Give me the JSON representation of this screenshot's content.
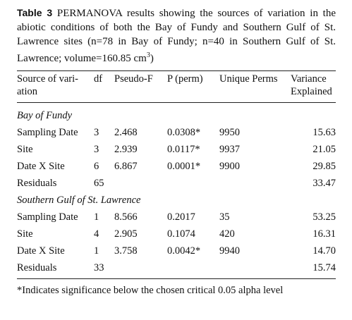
{
  "caption": {
    "label": "Table 3",
    "text": "PERMANOVA results showing the sources of variation in the abiotic conditions of both the Bay of Fundy and Southern Gulf of St. Lawrence sites (n=78 in Bay of Fundy; n=40 in Southern Gulf of St. Lawrence; volume=160.85 cm",
    "superscript": "3",
    "end": ")"
  },
  "table": {
    "header": {
      "source": [
        "Source of vari-",
        "ation"
      ],
      "df": [
        "df"
      ],
      "pseudo_f": [
        "Pseudo-F"
      ],
      "p": [
        "P (perm)"
      ],
      "perms": [
        "Unique Perms"
      ],
      "variance": [
        "Variance",
        "Explained"
      ]
    },
    "sections": [
      {
        "title": "Bay of Fundy",
        "rows": [
          {
            "source": "Sampling Date",
            "df": "3",
            "pseudo_f": "2.468",
            "p": "0.0308*",
            "perms": "9950",
            "variance": "15.63"
          },
          {
            "source": "Site",
            "df": "3",
            "pseudo_f": "2.939",
            "p": "0.0117*",
            "perms": "9937",
            "variance": "21.05"
          },
          {
            "source": "Date X Site",
            "df": "6",
            "pseudo_f": "6.867",
            "p": "0.0001*",
            "perms": "9900",
            "variance": "29.85"
          },
          {
            "source": "Residuals",
            "df": "65",
            "variance": "33.47"
          }
        ]
      },
      {
        "title": "Southern Gulf of St. Lawrence",
        "rows": [
          {
            "source": "Sampling Date",
            "df": "1",
            "pseudo_f": "8.566",
            "p": "0.2017",
            "perms": "35",
            "variance": "53.25"
          },
          {
            "source": "Site",
            "df": "4",
            "pseudo_f": "2.905",
            "p": "0.1074",
            "perms": "420",
            "variance": "16.31"
          },
          {
            "source": "Date X Site",
            "df": "1",
            "pseudo_f": "3.758",
            "p": "0.0042*",
            "perms": "9940",
            "variance": "14.70"
          },
          {
            "source": "Residuals",
            "df": "33",
            "variance": "15.74"
          }
        ]
      }
    ]
  },
  "footnote": "*Indicates significance below the chosen critical 0.05 alpha level"
}
